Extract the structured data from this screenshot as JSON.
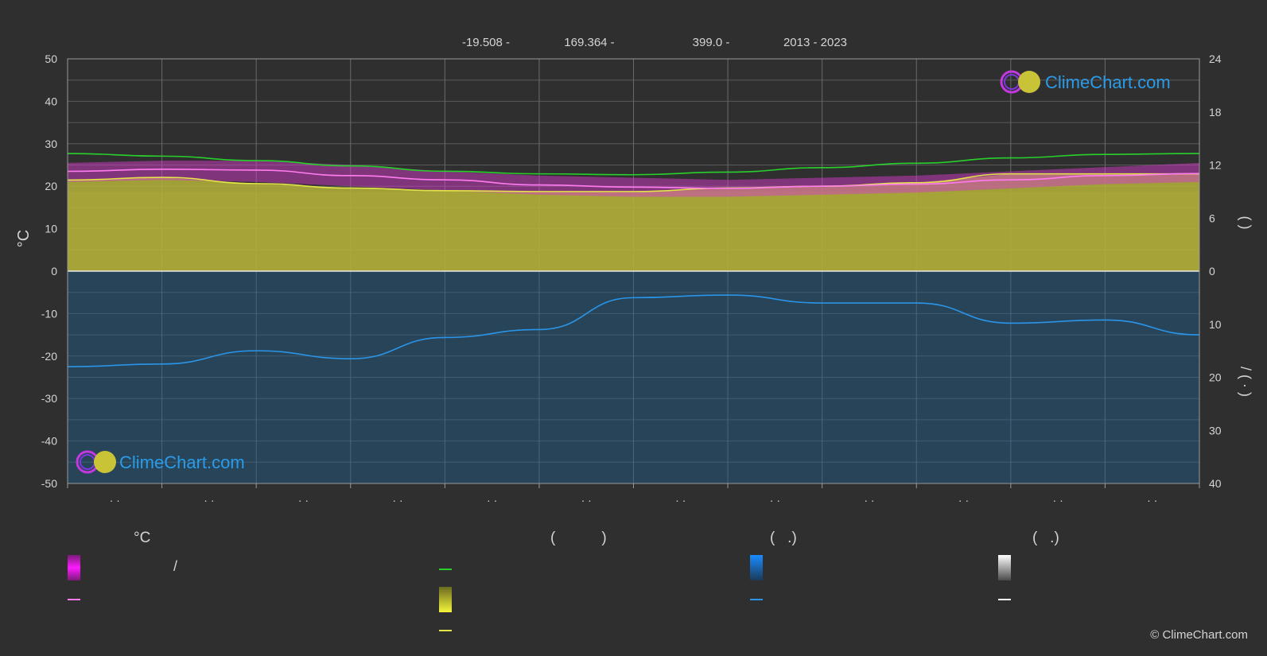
{
  "header": {
    "lat": "-19.508 -",
    "lon": "169.364 -",
    "elev": "399.0 -",
    "years": "2013 - 2023"
  },
  "logo": {
    "text": "ClimeChart.com"
  },
  "copyright": "© ClimeChart.com",
  "left_axis_unit": "°C",
  "right_axis_top_label": "(     )",
  "right_axis_bottom_label": "/     ( · )",
  "legend": {
    "headers": [
      "°C",
      "(           )",
      "(   .)",
      "(   .)"
    ],
    "slash_text": "/"
  },
  "colors": {
    "background": "#2f2f2f",
    "grid": "#5a5a5a",
    "sunshine_fill": "#b5b33a",
    "precip_fill": "#1f5f8f",
    "temp_band": "#d23cc8",
    "daylight_line": "#29d02b",
    "sunshine_line": "#e3e34a",
    "temp_mean_line": "#ff7cf0",
    "precip_line": "#2a95e8",
    "accent_blue": "#2a9be8"
  },
  "chart_data": {
    "type": "line",
    "months": 12,
    "month_tick_labels": [
      "· ·",
      "· ·",
      "· ·",
      "· ·",
      "· ·",
      "· ·",
      "· ·",
      "· ·",
      "· ·",
      "· ·",
      "· ·",
      "· ·"
    ],
    "left_axis": {
      "min": -50,
      "max": 50,
      "ticks": [
        50,
        40,
        30,
        20,
        10,
        0,
        -10,
        -20,
        -30,
        -40,
        -50
      ]
    },
    "right_axis_top": {
      "min": 0,
      "max": 24,
      "ticks": [
        24,
        18,
        12,
        6,
        0
      ]
    },
    "right_axis_bottom": {
      "min": 0,
      "max": 40,
      "ticks": [
        10,
        20,
        30,
        40
      ]
    },
    "grid": true,
    "series": [
      {
        "key": "daylight_hours",
        "axis": "right_top",
        "values": [
          13.3,
          13.0,
          12.5,
          11.9,
          11.3,
          11.0,
          10.9,
          11.2,
          11.7,
          12.2,
          12.8,
          13.2,
          13.3
        ]
      },
      {
        "key": "sunshine_hours",
        "axis": "right_top",
        "values": [
          10.3,
          10.6,
          9.9,
          9.4,
          9.1,
          9.0,
          9.0,
          9.4,
          9.6,
          10.0,
          11.0,
          11.0,
          11.0
        ]
      },
      {
        "key": "temp_mean",
        "axis": "left",
        "values": [
          23.5,
          24.0,
          23.8,
          22.5,
          21.5,
          20.3,
          19.8,
          19.5,
          20.0,
          20.5,
          21.5,
          22.5,
          23.0
        ]
      },
      {
        "key": "temp_max",
        "axis": "left",
        "values": [
          25.5,
          26.0,
          26.0,
          25.0,
          23.5,
          22.5,
          22.0,
          21.5,
          22.0,
          22.5,
          23.5,
          24.5,
          25.5
        ]
      },
      {
        "key": "temp_min",
        "axis": "left",
        "values": [
          21.0,
          21.5,
          21.0,
          20.0,
          19.0,
          18.0,
          17.5,
          17.5,
          18.0,
          18.5,
          19.5,
          20.5,
          21.0
        ]
      },
      {
        "key": "precip_mean_mm",
        "axis": "right_bottom",
        "values": [
          18.0,
          17.5,
          15.0,
          16.5,
          12.5,
          11.0,
          5.0,
          4.5,
          6.0,
          6.0,
          9.8,
          9.2,
          12.0
        ]
      }
    ]
  }
}
